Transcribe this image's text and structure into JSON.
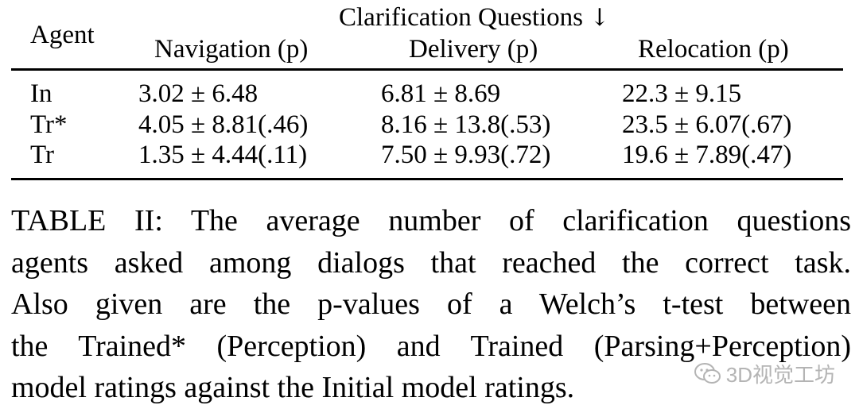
{
  "table": {
    "group_header": "Clarification Questions",
    "group_arrow": "↓",
    "row_header": "Agent",
    "columns": [
      "Navigation (p)",
      "Delivery (p)",
      "Relocation (p)"
    ],
    "rows": [
      {
        "agent": "In",
        "cells": [
          "3.02 ± 6.48",
          "6.81 ± 8.69",
          "22.3 ± 9.15"
        ]
      },
      {
        "agent": "Tr*",
        "cells": [
          "4.05 ± 8.81(.46)",
          "8.16 ± 13.8(.53)",
          "23.5 ± 6.07(.67)"
        ]
      },
      {
        "agent": "Tr",
        "cells": [
          "1.35 ± 4.44(.11)",
          "7.50 ± 9.93(.72)",
          "19.6 ± 7.89(.47)"
        ]
      }
    ]
  },
  "caption": {
    "lines": [
      "TABLE II: The average number of clarification questions",
      "agents asked among dialogs that reached the correct task.",
      "Also given are the p-values of a Welch’s t-test between",
      "the Trained* (Perception) and Trained (Parsing+Perception)",
      "model ratings against the Initial model ratings."
    ]
  },
  "watermark": {
    "text": "3D视觉工坊",
    "icon": "wechat-icon"
  }
}
